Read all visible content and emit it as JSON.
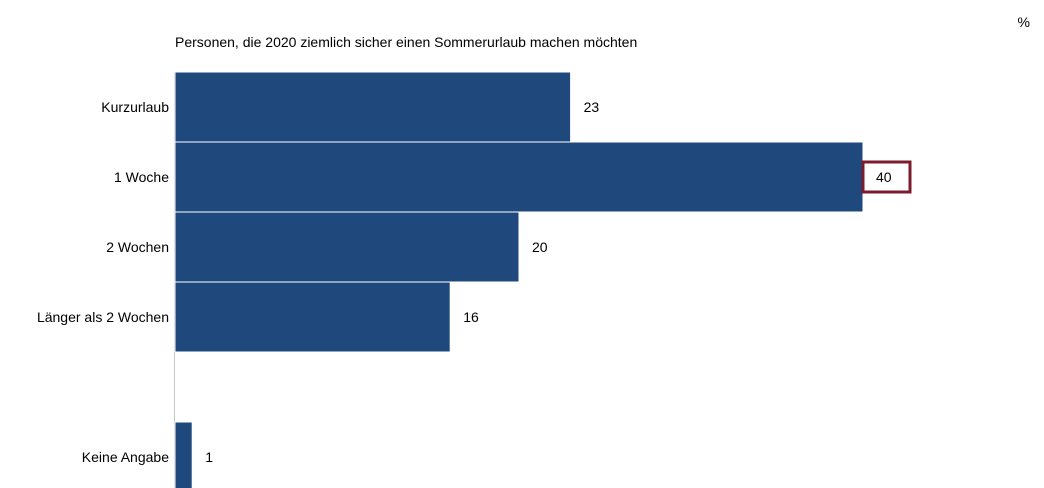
{
  "chart_data": {
    "type": "bar",
    "orientation": "horizontal",
    "title": "Personen, die 2020 ziemlich sicher einen Sommerurlaub machen möchten",
    "unit": "%",
    "categories": [
      "Kurzurlaub",
      "1 Woche",
      "2 Wochen",
      "Länger als 2 Wochen",
      "Keine Angabe"
    ],
    "values": [
      23,
      40,
      20,
      16,
      1
    ],
    "highlight_index": 1,
    "xlim": [
      0,
      40
    ],
    "grid": false,
    "legend": "none",
    "colors": {
      "bar": "#1f497d",
      "highlight_border": "#7b1c2e"
    }
  }
}
